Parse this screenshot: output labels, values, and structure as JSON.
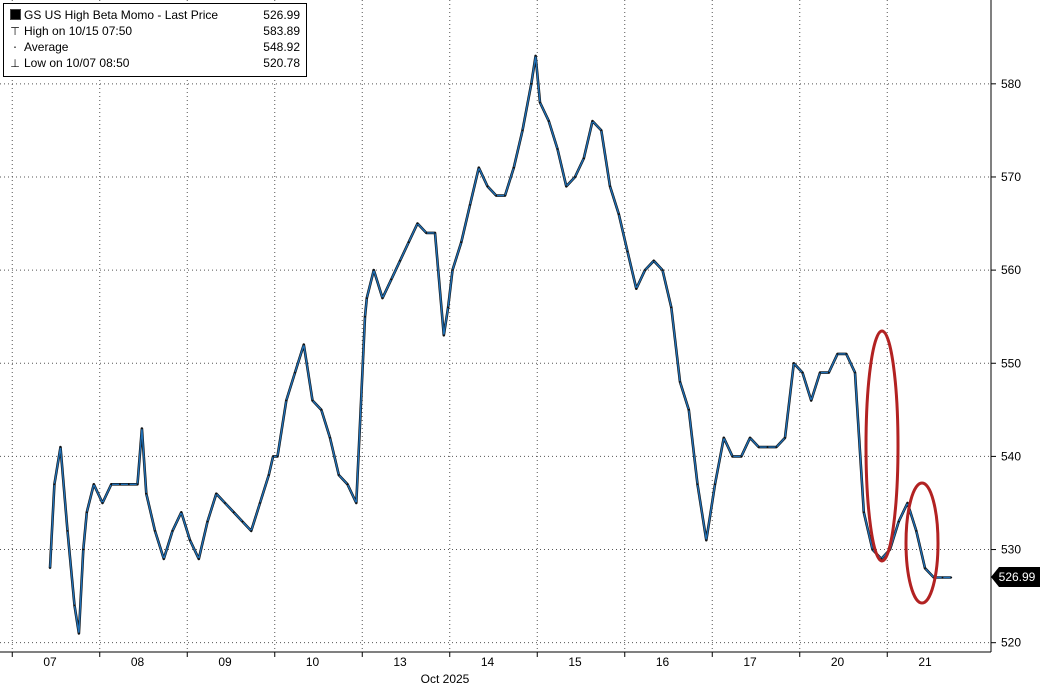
{
  "legend": {
    "series_label": "GS US High Beta Momo - Last Price",
    "last_value": "526.99",
    "high_label": "High on 10/15 07:50",
    "high_value": "583.89",
    "average_label": "Average",
    "average_value": "548.92",
    "low_label": "Low on 10/07 08:50",
    "low_value": "520.78"
  },
  "colors": {
    "primary_line": "#1f6fb5",
    "shadow_line": "#111111",
    "annotation": "#b22222",
    "grid": "#555555"
  },
  "chart_data": {
    "type": "line",
    "title": "GS US High Beta Momo - Last Price",
    "xlabel": "Oct 2025",
    "ylabel": "",
    "ylim": [
      519,
      589
    ],
    "yticks": [
      520,
      530,
      540,
      550,
      560,
      570,
      580
    ],
    "grid": true,
    "legend_position": "top-left",
    "last_price_tag": "526.99",
    "categories": [
      "07",
      "08",
      "09",
      "10",
      "13",
      "14",
      "15",
      "16",
      "17",
      "20",
      "21"
    ],
    "series": [
      {
        "name": "GS US High Beta Momo - Last Price",
        "x": [
          0.0,
          0.05,
          0.12,
          0.2,
          0.28,
          0.33,
          0.38,
          0.42,
          0.5,
          0.6,
          0.7,
          0.8,
          0.9,
          1.0,
          1.05,
          1.1,
          1.2,
          1.3,
          1.4,
          1.5,
          1.6,
          1.7,
          1.8,
          1.9,
          2.0,
          2.1,
          2.2,
          2.3,
          2.4,
          2.5,
          2.55,
          2.6,
          2.7,
          2.8,
          2.9,
          3.0,
          3.1,
          3.2,
          3.3,
          3.4,
          3.5,
          3.6,
          3.62,
          3.7,
          3.8,
          3.9,
          4.0,
          4.1,
          4.2,
          4.3,
          4.4,
          4.5,
          4.55,
          4.6,
          4.7,
          4.8,
          4.9,
          5.0,
          5.1,
          5.2,
          5.3,
          5.4,
          5.5,
          5.55,
          5.6,
          5.7,
          5.8,
          5.9,
          6.0,
          6.1,
          6.2,
          6.3,
          6.4,
          6.5,
          6.6,
          6.7,
          6.8,
          6.9,
          7.0,
          7.1,
          7.2,
          7.3,
          7.4,
          7.5,
          7.6,
          7.7,
          7.8,
          7.9,
          8.0,
          8.1,
          8.2,
          8.3,
          8.4,
          8.5,
          8.6,
          8.7,
          8.8,
          8.9,
          9.0,
          9.1,
          9.2,
          9.3,
          9.4,
          9.5,
          9.6,
          9.7,
          9.8,
          9.9,
          10.0,
          10.1,
          10.2,
          10.3
        ],
        "values": [
          528,
          537,
          541,
          532,
          524,
          521,
          530,
          534,
          537,
          535,
          537,
          537,
          537,
          537,
          543,
          536,
          532,
          529,
          532,
          534,
          531,
          529,
          533,
          536,
          535,
          534,
          533,
          532,
          535,
          538,
          540,
          540,
          546,
          549,
          552,
          546,
          545,
          542,
          538,
          537,
          535,
          555,
          557,
          560,
          557,
          559,
          561,
          563,
          565,
          564,
          564,
          553,
          556,
          560,
          563,
          567,
          571,
          569,
          568,
          568,
          571,
          575,
          580,
          583,
          578,
          576,
          573,
          569,
          570,
          572,
          576,
          575,
          569,
          566,
          562,
          558,
          560,
          561,
          560,
          556,
          548,
          545,
          537,
          531,
          537,
          542,
          540,
          540,
          542,
          541,
          541,
          541,
          542,
          550,
          549,
          546,
          549,
          549,
          551,
          551,
          549,
          534,
          530,
          529,
          530,
          533,
          535,
          532,
          528,
          527,
          527,
          527
        ]
      }
    ]
  }
}
